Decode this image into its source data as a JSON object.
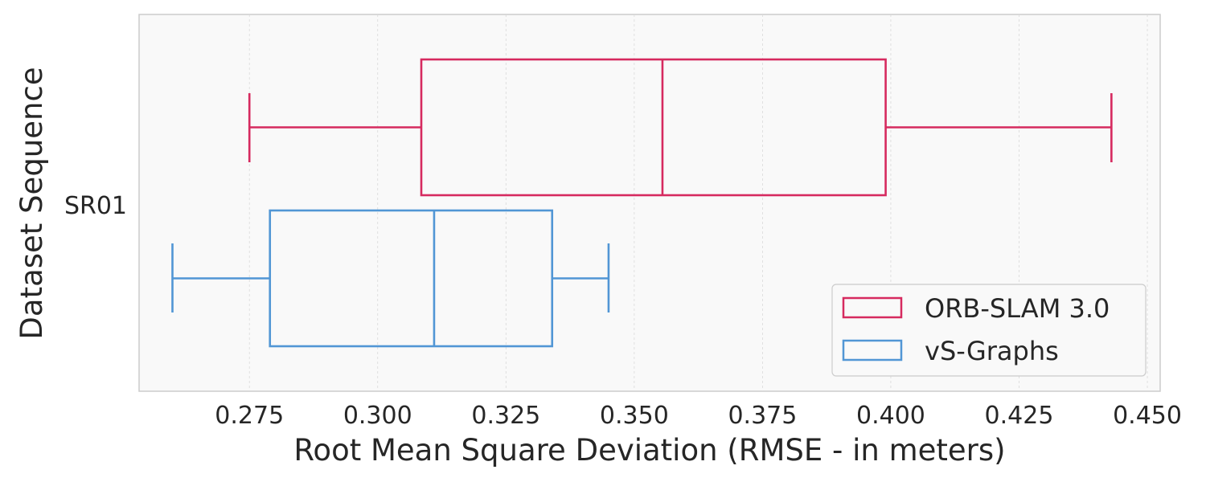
{
  "chart_data": {
    "type": "boxplot",
    "orientation": "horizontal",
    "xlabel": "Root Mean Square Deviation (RMSE - in meters)",
    "ylabel": "Dataset Sequence",
    "categories": [
      "SR01"
    ],
    "xlim": [
      0.2535,
      0.4525
    ],
    "xticks": [
      0.275,
      0.3,
      0.325,
      0.35,
      0.375,
      0.4,
      0.425,
      0.45
    ],
    "xtick_labels": [
      "0.275",
      "0.300",
      "0.325",
      "0.350",
      "0.375",
      "0.400",
      "0.425",
      "0.450"
    ],
    "grid": true,
    "legend_position": "bottom-right",
    "series": [
      {
        "name": "ORB-SLAM 3.0",
        "color": "#d62a5f",
        "min": 0.275,
        "q1": 0.3085,
        "median": 0.3555,
        "q3": 0.399,
        "max": 0.443
      },
      {
        "name": "vS-Graphs",
        "color": "#5196d5",
        "min": 0.26,
        "q1": 0.279,
        "median": 0.311,
        "q3": 0.334,
        "max": 0.345
      }
    ]
  }
}
